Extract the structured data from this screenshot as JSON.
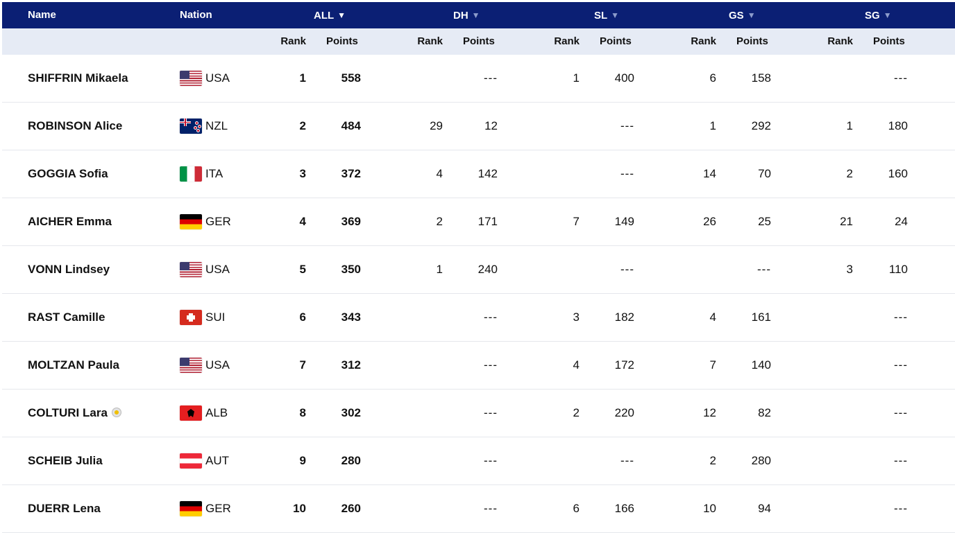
{
  "header": {
    "name": "Name",
    "nation": "Nation",
    "disciplines": [
      {
        "label": "ALL",
        "arrow": "▼",
        "active": true
      },
      {
        "label": "DH",
        "arrow": "▼",
        "active": false
      },
      {
        "label": "SL",
        "arrow": "▼",
        "active": false
      },
      {
        "label": "GS",
        "arrow": "▼",
        "active": false
      },
      {
        "label": "SG",
        "arrow": "▼",
        "active": false
      }
    ],
    "rank_label": "Rank",
    "points_label": "Points"
  },
  "rows": [
    {
      "name": "SHIFFRIN Mikaela",
      "flag": "usa",
      "nation": "USA",
      "all": [
        "1",
        "558"
      ],
      "dh": [
        "",
        "---"
      ],
      "sl": [
        "1",
        "400"
      ],
      "gs": [
        "6",
        "158"
      ],
      "sg": [
        "",
        "---"
      ]
    },
    {
      "name": "ROBINSON Alice",
      "flag": "nzl",
      "nation": "NZL",
      "all": [
        "2",
        "484"
      ],
      "dh": [
        "29",
        "12"
      ],
      "sl": [
        "",
        "---"
      ],
      "gs": [
        "1",
        "292"
      ],
      "sg": [
        "1",
        "180"
      ]
    },
    {
      "name": "GOGGIA Sofia",
      "flag": "ita",
      "nation": "ITA",
      "all": [
        "3",
        "372"
      ],
      "dh": [
        "4",
        "142"
      ],
      "sl": [
        "",
        "---"
      ],
      "gs": [
        "14",
        "70"
      ],
      "sg": [
        "2",
        "160"
      ]
    },
    {
      "name": "AICHER Emma",
      "flag": "ger",
      "nation": "GER",
      "all": [
        "4",
        "369"
      ],
      "dh": [
        "2",
        "171"
      ],
      "sl": [
        "7",
        "149"
      ],
      "gs": [
        "26",
        "25"
      ],
      "sg": [
        "21",
        "24"
      ]
    },
    {
      "name": "VONN Lindsey",
      "flag": "usa",
      "nation": "USA",
      "all": [
        "5",
        "350"
      ],
      "dh": [
        "1",
        "240"
      ],
      "sl": [
        "",
        "---"
      ],
      "gs": [
        "",
        "---"
      ],
      "sg": [
        "3",
        "110"
      ]
    },
    {
      "name": "RAST Camille",
      "flag": "sui",
      "nation": "SUI",
      "all": [
        "6",
        "343"
      ],
      "dh": [
        "",
        "---"
      ],
      "sl": [
        "3",
        "182"
      ],
      "gs": [
        "4",
        "161"
      ],
      "sg": [
        "",
        "---"
      ]
    },
    {
      "name": "MOLTZAN Paula",
      "flag": "usa",
      "nation": "USA",
      "all": [
        "7",
        "312"
      ],
      "dh": [
        "",
        "---"
      ],
      "sl": [
        "4",
        "172"
      ],
      "gs": [
        "7",
        "140"
      ],
      "sg": [
        "",
        "---"
      ]
    },
    {
      "name": "COLTURI Lara",
      "flag": "alb",
      "nation": "ALB",
      "badge": true,
      "all": [
        "8",
        "302"
      ],
      "dh": [
        "",
        "---"
      ],
      "sl": [
        "2",
        "220"
      ],
      "gs": [
        "12",
        "82"
      ],
      "sg": [
        "",
        "---"
      ]
    },
    {
      "name": "SCHEIB Julia",
      "flag": "aut",
      "nation": "AUT",
      "all": [
        "9",
        "280"
      ],
      "dh": [
        "",
        "---"
      ],
      "sl": [
        "",
        "---"
      ],
      "gs": [
        "2",
        "280"
      ],
      "sg": [
        "",
        "---"
      ]
    },
    {
      "name": "DUERR Lena",
      "flag": "ger",
      "nation": "GER",
      "all": [
        "10",
        "260"
      ],
      "dh": [
        "",
        "---"
      ],
      "sl": [
        "6",
        "166"
      ],
      "gs": [
        "10",
        "94"
      ],
      "sg": [
        "",
        "---"
      ]
    }
  ]
}
